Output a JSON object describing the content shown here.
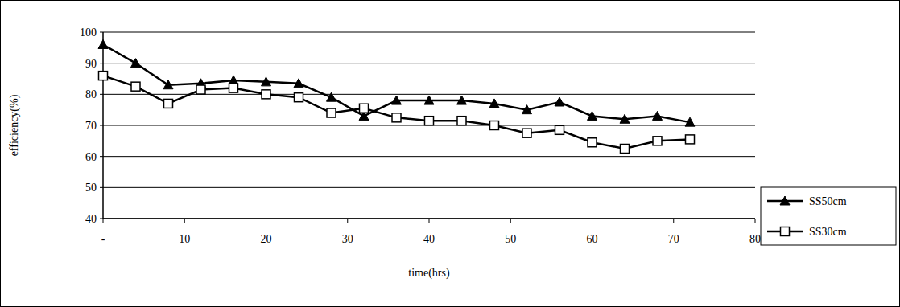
{
  "chart_data": {
    "type": "line",
    "x_label": "time(hrs)",
    "y_label": "efficiency(%)",
    "x": [
      0,
      4,
      8,
      12,
      16,
      20,
      24,
      28,
      32,
      36,
      40,
      44,
      48,
      52,
      56,
      60,
      64,
      68,
      72
    ],
    "series": [
      {
        "name": "SS50cm",
        "color": "#000000",
        "marker": "triangle",
        "line_style": "solid",
        "values": [
          96,
          90,
          83,
          83.5,
          84.5,
          84,
          83.5,
          79,
          73,
          78,
          78,
          78,
          77,
          75,
          77.5,
          73,
          72,
          73,
          71
        ]
      },
      {
        "name": "SS30cm",
        "color": "#000000",
        "marker": "square",
        "line_style": "solid",
        "values": [
          86,
          82.5,
          77,
          81.5,
          82,
          80,
          79,
          74,
          75.5,
          72.5,
          71.5,
          71.5,
          70,
          67.5,
          68.5,
          64.5,
          62.5,
          65,
          65.5
        ]
      }
    ],
    "xlim": [
      0,
      80
    ],
    "xticks": [
      {
        "value": 0,
        "label": "-"
      },
      10,
      20,
      30,
      40,
      50,
      60,
      70,
      80
    ],
    "ylim": [
      40,
      100
    ],
    "yticks": [
      40,
      50,
      60,
      70,
      80,
      90,
      100
    ],
    "grid": true,
    "legend": "right"
  }
}
